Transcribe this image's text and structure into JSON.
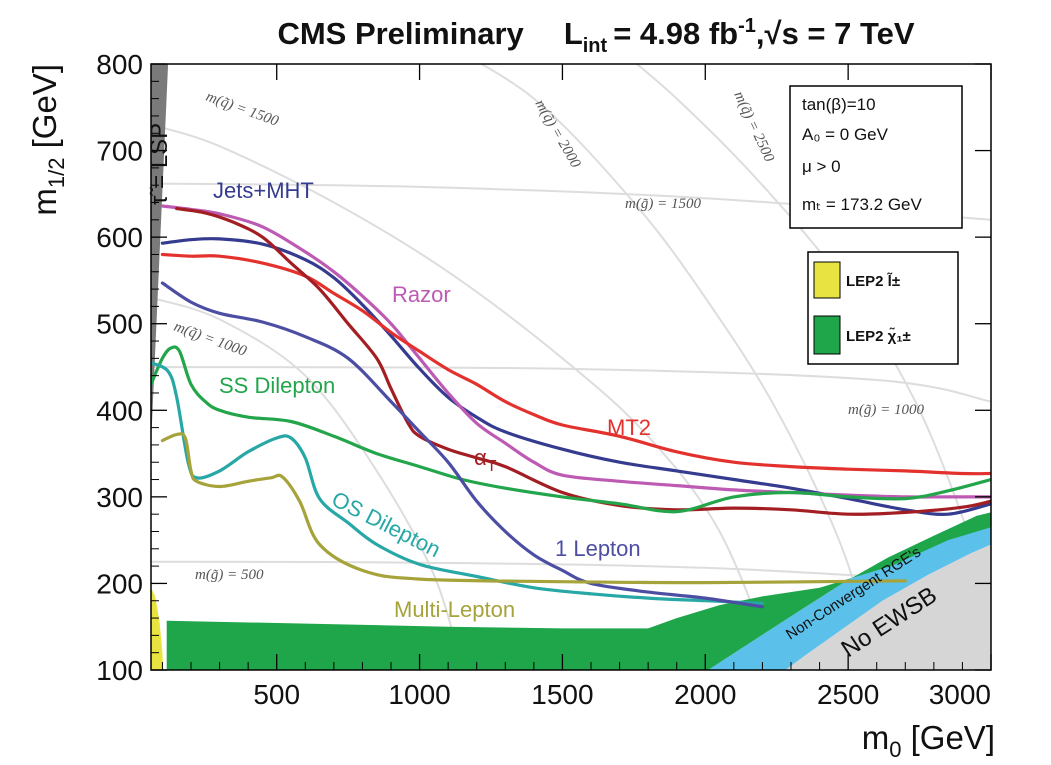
{
  "chart_data": {
    "type": "line",
    "title": {
      "main": "CMS Preliminary",
      "lumi_prefix": "L",
      "lumi_sub": "int",
      "lumi_value": "= 4.98 fb",
      "lumi_sup": "-1",
      "energy_sep": ",",
      "sqrt": "√",
      "energy": "s = 7 TeV"
    },
    "xlabel": {
      "base": "m",
      "sub": "0",
      "unit": " [GeV]"
    },
    "ylabel": {
      "base": "m",
      "sub": "1/2",
      "unit": " [GeV]"
    },
    "xlim": [
      60,
      3000
    ],
    "ylim": [
      100,
      800
    ],
    "xticks": [
      500,
      1000,
      1500,
      2000,
      2500,
      3000
    ],
    "yticks": [
      100,
      200,
      300,
      400,
      500,
      600,
      700,
      800
    ],
    "params": [
      "tan(β)=10",
      "A₀ = 0 GeV",
      "μ > 0",
      "mₜ = 173.2 GeV"
    ],
    "legend": [
      {
        "label": "LEP2 l̃±",
        "color": "#e8e341"
      },
      {
        "label": "LEP2 χ̃₁±",
        "color": "#1fa64a"
      }
    ],
    "regions": [
      {
        "name": "stau-lsp",
        "label": "τ̃ = LSP",
        "color": "#7a7a7a",
        "points": [
          [
            60,
            800
          ],
          [
            120,
            800
          ],
          [
            60,
            360
          ]
        ]
      },
      {
        "name": "no-ewsb",
        "label": "No EWSB",
        "color": "#d6d6d6",
        "points": [
          [
            2280,
            100
          ],
          [
            3000,
            100
          ],
          [
            3000,
            245
          ],
          [
            2930,
            235
          ],
          [
            2780,
            210
          ],
          [
            2620,
            180
          ],
          [
            2470,
            145
          ],
          [
            2350,
            117
          ]
        ]
      },
      {
        "name": "non-convergent",
        "label": "Non-Convergent RGE's",
        "color": "#5bc0ea",
        "points": [
          [
            2280,
            100
          ],
          [
            2350,
            117
          ],
          [
            2470,
            145
          ],
          [
            2620,
            180
          ],
          [
            2780,
            210
          ],
          [
            2930,
            235
          ],
          [
            3000,
            245
          ],
          [
            3000,
            282
          ],
          [
            2950,
            278
          ],
          [
            2800,
            255
          ],
          [
            2640,
            230
          ],
          [
            2480,
            200
          ],
          [
            2300,
            162
          ],
          [
            2150,
            130
          ],
          [
            2010,
            100
          ]
        ]
      },
      {
        "name": "lep2-chargino",
        "label": "LEP2 chargino",
        "color": "#1fa64a",
        "points": [
          [
            115,
            100
          ],
          [
            115,
            157
          ],
          [
            1100,
            150
          ],
          [
            1500,
            148
          ],
          [
            1800,
            148
          ],
          [
            1900,
            160
          ],
          [
            2050,
            175
          ],
          [
            2200,
            185
          ],
          [
            2400,
            195
          ],
          [
            2650,
            220
          ],
          [
            2850,
            250
          ],
          [
            3000,
            265
          ],
          [
            3000,
            282
          ],
          [
            2950,
            278
          ],
          [
            2800,
            255
          ],
          [
            2640,
            230
          ],
          [
            2480,
            200
          ],
          [
            2300,
            162
          ],
          [
            2150,
            130
          ],
          [
            2010,
            100
          ]
        ]
      },
      {
        "name": "lep2-slepton",
        "label": "LEP2 slepton",
        "color": "#e8e341",
        "points": [
          [
            60,
            100
          ],
          [
            60,
            195
          ],
          [
            75,
            185
          ],
          [
            90,
            155
          ],
          [
            100,
            120
          ],
          [
            103,
            100
          ]
        ]
      }
    ],
    "iso_lines": [
      {
        "label": "m(q̃) = 1500",
        "points": [
          [
            60,
            730
          ],
          [
            300,
            705
          ],
          [
            700,
            640
          ],
          [
            1100,
            560
          ],
          [
            1500,
            460
          ],
          [
            1800,
            370
          ],
          [
            2050,
            260
          ],
          [
            2250,
            100
          ]
        ]
      },
      {
        "label": "m(q̃) = 2000",
        "points": [
          [
            1050,
            830
          ],
          [
            1400,
            760
          ],
          [
            1750,
            640
          ],
          [
            2000,
            530
          ],
          [
            2250,
            400
          ],
          [
            2480,
            240
          ],
          [
            2600,
            100
          ]
        ]
      },
      {
        "label": "m(q̃) = 2500",
        "points": [
          [
            1650,
            830
          ],
          [
            1900,
            760
          ],
          [
            2200,
            660
          ],
          [
            2500,
            540
          ],
          [
            2750,
            400
          ],
          [
            2950,
            230
          ],
          [
            3000,
            160
          ]
        ]
      },
      {
        "label": "m(q̃) = 1000",
        "points": [
          [
            60,
            530
          ],
          [
            300,
            505
          ],
          [
            600,
            440
          ],
          [
            850,
            330
          ],
          [
            1050,
            210
          ],
          [
            1150,
            100
          ]
        ]
      },
      {
        "label": "m(g̃) = 1500",
        "points": [
          [
            60,
            662
          ],
          [
            1000,
            658
          ],
          [
            2000,
            645
          ],
          [
            3000,
            620
          ]
        ]
      },
      {
        "label": "m(g̃) = 1000",
        "points": [
          [
            60,
            450
          ],
          [
            1500,
            448
          ],
          [
            2600,
            435
          ],
          [
            3000,
            410
          ]
        ]
      },
      {
        "label": "m(g̃) = 500",
        "points": [
          [
            60,
            225
          ],
          [
            1000,
            224
          ],
          [
            2000,
            218
          ],
          [
            3000,
            200
          ]
        ]
      }
    ],
    "series": [
      {
        "name": "Jets+MHT",
        "color": "#353b8f",
        "points": [
          [
            100,
            593
          ],
          [
            200,
            597
          ],
          [
            300,
            598
          ],
          [
            450,
            592
          ],
          [
            600,
            574
          ],
          [
            700,
            553
          ],
          [
            800,
            522
          ],
          [
            900,
            486
          ],
          [
            1000,
            448
          ],
          [
            1100,
            415
          ],
          [
            1200,
            392
          ],
          [
            1300,
            375
          ],
          [
            1500,
            355
          ],
          [
            1700,
            340
          ],
          [
            1900,
            330
          ],
          [
            2100,
            320
          ],
          [
            2300,
            310
          ],
          [
            2500,
            298
          ],
          [
            2700,
            285
          ],
          [
            2850,
            280
          ],
          [
            3000,
            292
          ]
        ]
      },
      {
        "name": "Razor",
        "color": "#bd5ab3",
        "points": [
          [
            100,
            636
          ],
          [
            200,
            632
          ],
          [
            300,
            627
          ],
          [
            450,
            612
          ],
          [
            600,
            583
          ],
          [
            700,
            560
          ],
          [
            800,
            532
          ],
          [
            900,
            500
          ],
          [
            1000,
            460
          ],
          [
            1100,
            420
          ],
          [
            1200,
            385
          ],
          [
            1300,
            362
          ],
          [
            1400,
            340
          ],
          [
            1500,
            325
          ],
          [
            1700,
            318
          ],
          [
            1900,
            313
          ],
          [
            2100,
            308
          ],
          [
            2300,
            305
          ],
          [
            2500,
            302
          ],
          [
            2700,
            300
          ],
          [
            2850,
            300
          ],
          [
            3000,
            300
          ]
        ]
      },
      {
        "name": "MT2",
        "color": "#e3312e",
        "points": [
          [
            100,
            580
          ],
          [
            200,
            578
          ],
          [
            300,
            578
          ],
          [
            450,
            570
          ],
          [
            600,
            555
          ],
          [
            700,
            535
          ],
          [
            800,
            515
          ],
          [
            900,
            490
          ],
          [
            1000,
            468
          ],
          [
            1100,
            447
          ],
          [
            1200,
            430
          ],
          [
            1300,
            410
          ],
          [
            1400,
            395
          ],
          [
            1500,
            383
          ],
          [
            1700,
            370
          ],
          [
            1900,
            352
          ],
          [
            2100,
            340
          ],
          [
            2300,
            335
          ],
          [
            2500,
            332
          ],
          [
            2700,
            330
          ],
          [
            2900,
            327
          ],
          [
            3000,
            327
          ]
        ]
      },
      {
        "name": "αT",
        "color": "#a31e23",
        "points": [
          [
            150,
            633
          ],
          [
            250,
            628
          ],
          [
            350,
            617
          ],
          [
            450,
            600
          ],
          [
            550,
            570
          ],
          [
            650,
            540
          ],
          [
            750,
            500
          ],
          [
            850,
            460
          ],
          [
            900,
            425
          ],
          [
            960,
            385
          ],
          [
            1000,
            370
          ],
          [
            1100,
            355
          ],
          [
            1200,
            345
          ],
          [
            1300,
            335
          ],
          [
            1500,
            305
          ],
          [
            1700,
            290
          ],
          [
            1900,
            285
          ],
          [
            2100,
            287
          ],
          [
            2300,
            285
          ],
          [
            2500,
            280
          ],
          [
            2700,
            282
          ],
          [
            2900,
            288
          ],
          [
            3000,
            295
          ]
        ]
      },
      {
        "name": "SS Dilepton",
        "color": "#23a54b",
        "points": [
          [
            60,
            430
          ],
          [
            100,
            460
          ],
          [
            130,
            472
          ],
          [
            160,
            468
          ],
          [
            200,
            430
          ],
          [
            250,
            410
          ],
          [
            300,
            400
          ],
          [
            400,
            392
          ],
          [
            550,
            387
          ],
          [
            700,
            370
          ],
          [
            850,
            350
          ],
          [
            1000,
            335
          ],
          [
            1150,
            320
          ],
          [
            1300,
            310
          ],
          [
            1500,
            300
          ],
          [
            1700,
            292
          ],
          [
            1900,
            283
          ],
          [
            2100,
            300
          ],
          [
            2300,
            305
          ],
          [
            2500,
            300
          ],
          [
            2700,
            298
          ],
          [
            2850,
            307
          ],
          [
            3000,
            320
          ]
        ]
      },
      {
        "name": "OS Dilepton",
        "color": "#27a7a6",
        "points": [
          [
            60,
            455
          ],
          [
            120,
            445
          ],
          [
            150,
            415
          ],
          [
            190,
            340
          ],
          [
            220,
            322
          ],
          [
            300,
            330
          ],
          [
            400,
            352
          ],
          [
            500,
            368
          ],
          [
            550,
            368
          ],
          [
            600,
            345
          ],
          [
            650,
            298
          ],
          [
            750,
            270
          ],
          [
            850,
            245
          ],
          [
            1000,
            222
          ],
          [
            1200,
            208
          ],
          [
            1400,
            195
          ],
          [
            1600,
            188
          ],
          [
            1800,
            183
          ],
          [
            2000,
            180
          ],
          [
            2200,
            177
          ]
        ]
      },
      {
        "name": "1 Lepton",
        "color": "#4c4ea4",
        "points": [
          [
            100,
            547
          ],
          [
            200,
            525
          ],
          [
            300,
            512
          ],
          [
            450,
            502
          ],
          [
            600,
            485
          ],
          [
            750,
            460
          ],
          [
            900,
            410
          ],
          [
            1000,
            375
          ],
          [
            1100,
            340
          ],
          [
            1200,
            295
          ],
          [
            1300,
            260
          ],
          [
            1400,
            233
          ],
          [
            1500,
            215
          ],
          [
            1600,
            200
          ],
          [
            1800,
            190
          ],
          [
            2000,
            183
          ],
          [
            2200,
            173
          ]
        ]
      },
      {
        "name": "Multi-Lepton",
        "color": "#a6a33b",
        "points": [
          [
            100,
            365
          ],
          [
            150,
            372
          ],
          [
            180,
            368
          ],
          [
            200,
            330
          ],
          [
            220,
            318
          ],
          [
            300,
            312
          ],
          [
            400,
            318
          ],
          [
            480,
            322
          ],
          [
            520,
            323
          ],
          [
            580,
            295
          ],
          [
            650,
            245
          ],
          [
            800,
            215
          ],
          [
            1000,
            205
          ],
          [
            1500,
            202
          ],
          [
            2000,
            201
          ],
          [
            2700,
            203
          ]
        ]
      }
    ],
    "annotations": {
      "jets_mht": "Jets+MHT",
      "razor": "Razor",
      "mt2": "MT2",
      "alpha_base": "α",
      "alpha_sub": "T",
      "ss_dilepton": "SS Dilepton",
      "os_dilepton": "OS Dilepton",
      "one_lepton": "1 Lepton",
      "multi_lepton": "Multi-Lepton",
      "stau_lsp": "τ̃ = LSP",
      "non_convergent": "Non-Convergent RGE's",
      "no_ewsb": "No EWSB",
      "sq1500": "m(q̃) = 1500",
      "sq2000": "m(q̃) = 2000",
      "sq2500": "m(q̃) = 2500",
      "sq1000": "m(q̃) = 1000",
      "gl1500": "m(g̃) = 1500",
      "gl1000": "m(g̃) = 1000",
      "gl500": "m(g̃) = 500"
    }
  }
}
